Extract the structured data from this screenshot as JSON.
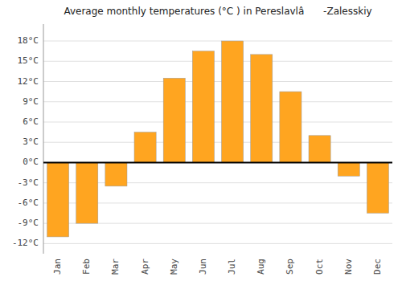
{
  "chart_data": {
    "type": "bar",
    "title": "Average monthly temperatures (°C ) in Pereslavlâ -Zalesskiy",
    "categories": [
      "Jan",
      "Feb",
      "Mar",
      "Apr",
      "May",
      "Jun",
      "Jul",
      "Aug",
      "Sep",
      "Oct",
      "Nov",
      "Dec"
    ],
    "values": [
      -11,
      -9,
      -3.5,
      4.5,
      12.5,
      16.5,
      18,
      16,
      10.5,
      4,
      -2,
      -7.5
    ],
    "color": "#FFA520",
    "ylim": [
      -13.5,
      20.5
    ],
    "yticks": [
      {
        "value": -12,
        "label": "-12°C"
      },
      {
        "value": -9,
        "label": "-9°C"
      },
      {
        "value": -6,
        "label": "-6°C"
      },
      {
        "value": -3,
        "label": "-3°C"
      },
      {
        "value": 0,
        "label": "0°C"
      },
      {
        "value": 3,
        "label": "3°C"
      },
      {
        "value": 6,
        "label": "6°C"
      },
      {
        "value": 9,
        "label": "9°C"
      },
      {
        "value": 12,
        "label": "12°C"
      },
      {
        "value": 15,
        "label": "15°C"
      },
      {
        "value": 18,
        "label": "18°C"
      }
    ],
    "grid": true
  }
}
